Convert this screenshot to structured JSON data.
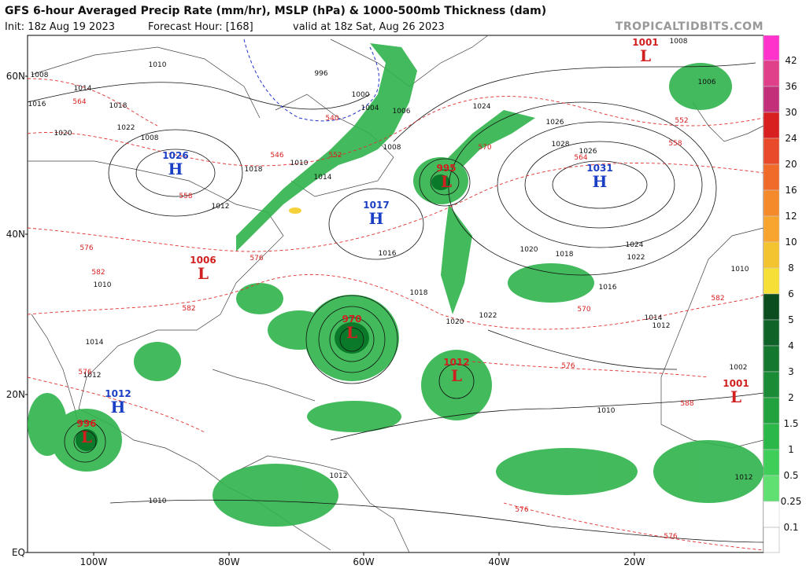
{
  "header": {
    "title": "GFS 6-hour Averaged Precip Rate (mm/hr), MSLP (hPa) & 1000-500mb Thickness (dam)",
    "init": "Init: 18z Aug 19 2023",
    "forecast_hour": "Forecast Hour: [168]",
    "valid": "valid at 18z Sat, Aug 26 2023",
    "source": "TROPICALTIDBITS.COM"
  },
  "colorbar": {
    "ticks": [
      42,
      36,
      30,
      24,
      20,
      16,
      12,
      10,
      8,
      6,
      5,
      4,
      3,
      2,
      1.5,
      1,
      0.5,
      0.25,
      0.1
    ]
  },
  "axes": {
    "lat_labels": [
      "60N",
      "40N",
      "20N",
      "EQ"
    ],
    "lon_labels": [
      "100W",
      "80W",
      "60W",
      "40W",
      "20W"
    ]
  },
  "centers": [
    {
      "kind": "H",
      "pressure": 1026
    },
    {
      "kind": "L",
      "pressure": 1001
    },
    {
      "kind": "L",
      "pressure": 995
    },
    {
      "kind": "H",
      "pressure": 1031
    },
    {
      "kind": "H",
      "pressure": 1017
    },
    {
      "kind": "L",
      "pressure": 1006
    },
    {
      "kind": "H",
      "pressure": 1012
    },
    {
      "kind": "L",
      "pressure": 996
    },
    {
      "kind": "L",
      "pressure": 970
    },
    {
      "kind": "L",
      "pressure": 1012
    },
    {
      "kind": "L",
      "pressure": 1001
    }
  ],
  "isobar_labels": [
    1010,
    1008,
    1016,
    1018,
    1022,
    1020,
    1014,
    1018,
    1012,
    1004,
    1000,
    996,
    1006,
    1008,
    1010,
    1014,
    1016,
    1018,
    1020,
    1022,
    1024,
    1026,
    1028,
    1026,
    1024,
    1022,
    1020,
    1018,
    1016,
    1014,
    1012,
    1010,
    1008,
    1006,
    1008,
    1010,
    1014,
    1012,
    1010,
    1012,
    1002,
    1010,
    1012
  ],
  "thickness_labels": [
    564,
    552,
    546,
    540,
    558,
    552,
    558,
    564,
    570,
    576,
    582,
    576,
    570,
    576,
    588,
    582,
    576,
    582,
    576,
    576
  ]
}
